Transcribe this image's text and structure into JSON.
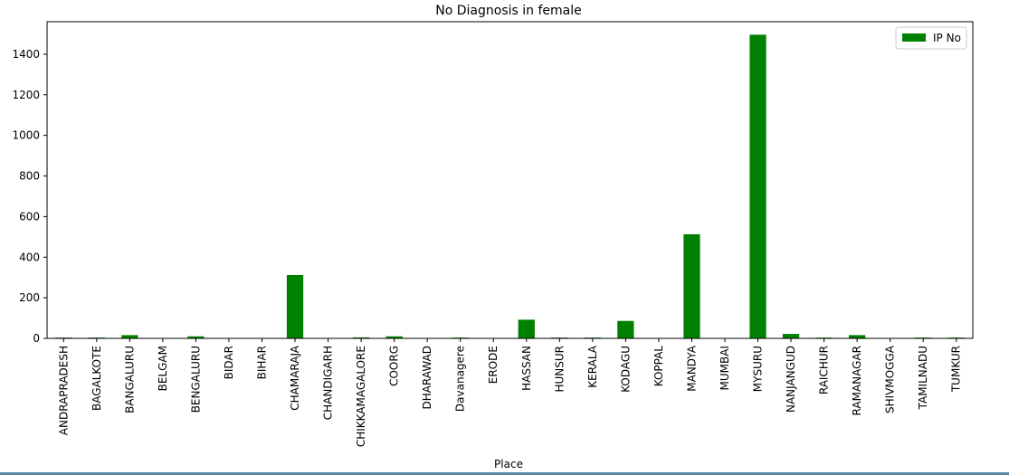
{
  "chart_data": {
    "type": "bar",
    "title": "No Diagnosis in female",
    "xlabel": "Place",
    "ylabel": "",
    "ylim": [
      0,
      1560
    ],
    "yticks": [
      0,
      200,
      400,
      600,
      800,
      1000,
      1200,
      1400
    ],
    "categories": [
      "ANDRAPRADESH",
      "BAGALKOTE",
      "BANGALURU",
      "BELGAM",
      "BENGALURU",
      "BIDAR",
      "BIHAR",
      "CHAMARAJA",
      "CHANDIGARH",
      "CHIKKAMAGALORE",
      "COORG",
      "DHARAWAD",
      "Davanagere",
      "ERODE",
      "HASSAN",
      "HUNSUR",
      "KERALA",
      "KODAGU",
      "KOPPAL",
      "MANDYA",
      "MUMBAI",
      "MYSURU",
      "NANJANGUD",
      "RAICHUR",
      "RAMANAGAR",
      "SHIVMOGGA",
      "TAMILNADU",
      "TUMKUR"
    ],
    "series": [
      {
        "name": "IP No",
        "color": "#008000",
        "values": [
          4,
          4,
          16,
          1,
          10,
          1,
          1,
          312,
          1,
          5,
          10,
          1,
          4,
          1,
          92,
          4,
          4,
          86,
          1,
          513,
          1,
          1496,
          22,
          4,
          16,
          1,
          4,
          4
        ]
      }
    ],
    "legend_position": "top-right",
    "grid": false
  }
}
